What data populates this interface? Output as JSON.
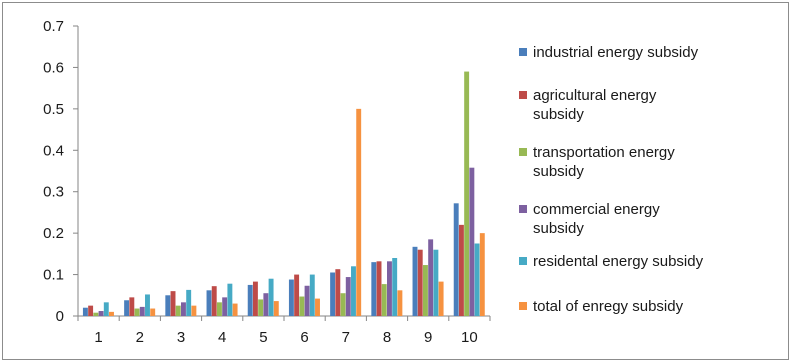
{
  "chart_data": {
    "type": "bar",
    "categories": [
      "1",
      "2",
      "3",
      "4",
      "5",
      "6",
      "7",
      "8",
      "9",
      "10"
    ],
    "series": [
      {
        "name": "industrial energy subsidy",
        "color": "#4a7ebb",
        "values": [
          0.02,
          0.038,
          0.05,
          0.062,
          0.075,
          0.088,
          0.105,
          0.13,
          0.167,
          0.272
        ]
      },
      {
        "name": "agricultural energy subsidy",
        "color": "#be4b48",
        "values": [
          0.025,
          0.045,
          0.06,
          0.072,
          0.083,
          0.1,
          0.113,
          0.132,
          0.16,
          0.22
        ]
      },
      {
        "name": "transportation energy subsidy",
        "color": "#98b954",
        "values": [
          0.008,
          0.018,
          0.025,
          0.033,
          0.04,
          0.047,
          0.055,
          0.077,
          0.123,
          0.59
        ]
      },
      {
        "name": "commercial energy subsidy",
        "color": "#7d60a0",
        "values": [
          0.012,
          0.022,
          0.033,
          0.045,
          0.055,
          0.073,
          0.094,
          0.132,
          0.185,
          0.358
        ]
      },
      {
        "name": "residental energy subsidy",
        "color": "#46aac5",
        "values": [
          0.033,
          0.052,
          0.063,
          0.078,
          0.09,
          0.1,
          0.12,
          0.14,
          0.16,
          0.175
        ]
      },
      {
        "name": "total of enregy subsidy",
        "color": "#f69240",
        "values": [
          0.01,
          0.018,
          0.025,
          0.03,
          0.036,
          0.042,
          0.5,
          0.062,
          0.083,
          0.2
        ]
      }
    ],
    "legend_labels": [
      [
        "industrial energy subsidy"
      ],
      [
        "agricultural energy",
        "subsidy"
      ],
      [
        "transportation energy",
        "subsidy"
      ],
      [
        "commercial energy",
        "subsidy"
      ],
      [
        "residental energy subsidy"
      ],
      [
        "total of enregy subsidy"
      ]
    ],
    "title": "",
    "xlabel": "",
    "ylabel": "",
    "ylim": [
      0,
      0.7
    ],
    "yticks": [
      "0",
      "0.1",
      "0.2",
      "0.3",
      "0.4",
      "0.5",
      "0.6",
      "0.7"
    ],
    "grid": false,
    "legend_position": "right"
  }
}
